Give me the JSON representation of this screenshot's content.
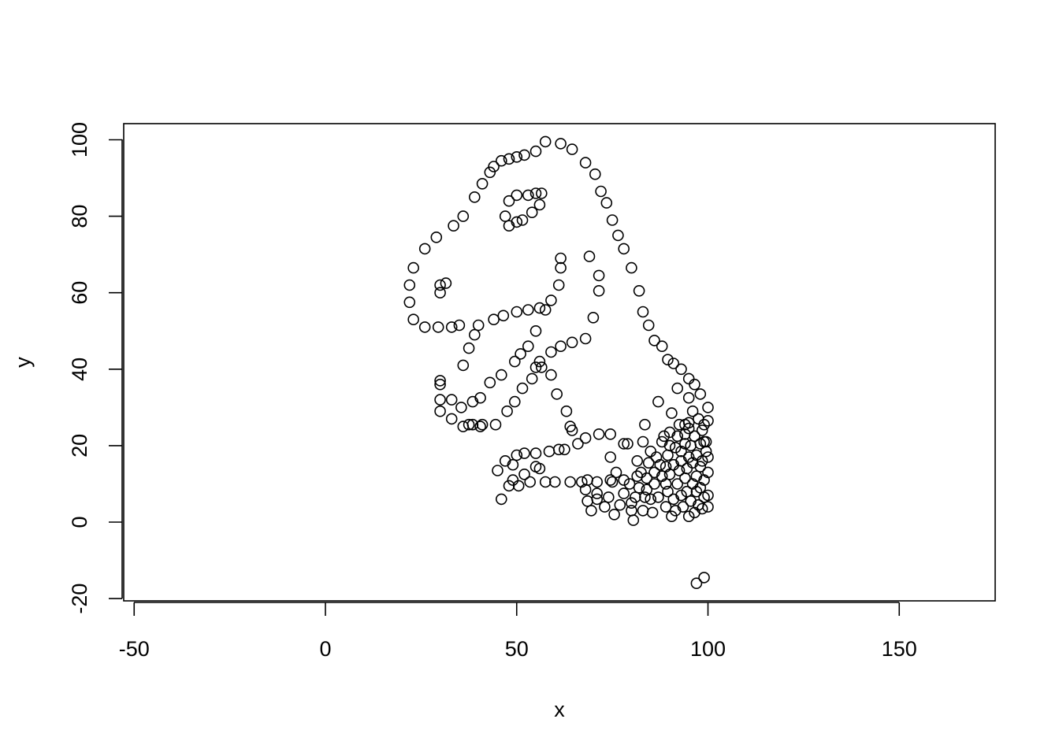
{
  "chart_data": {
    "type": "scatter",
    "title": "",
    "xlabel": "x",
    "ylabel": "y",
    "xlim": [
      -50,
      175
    ],
    "ylim": [
      -20,
      100
    ],
    "xticks": [
      "-50",
      "0",
      "50",
      "100",
      "150"
    ],
    "yticks": [
      "-20",
      "0",
      "20",
      "40",
      "60",
      "80",
      "100"
    ],
    "grid": false,
    "legend": "none",
    "marker": "open-circle",
    "colors": {
      "points": "#000000",
      "frame": "#000000",
      "background": "#ffffff"
    },
    "points": [
      [
        57.5,
        99.5
      ],
      [
        61.5,
        99
      ],
      [
        64.5,
        97.5
      ],
      [
        68,
        94
      ],
      [
        70.5,
        91
      ],
      [
        72,
        86.5
      ],
      [
        73.5,
        83.5
      ],
      [
        75,
        79
      ],
      [
        76.5,
        75
      ],
      [
        78,
        71.5
      ],
      [
        80,
        66.5
      ],
      [
        82,
        60.5
      ],
      [
        83,
        55
      ],
      [
        84.5,
        51.5
      ],
      [
        86,
        47.5
      ],
      [
        88,
        46
      ],
      [
        89.5,
        42.5
      ],
      [
        91,
        41.5
      ],
      [
        93,
        40
      ],
      [
        95,
        37.5
      ],
      [
        96.5,
        36
      ],
      [
        98,
        33.5
      ],
      [
        100,
        30
      ],
      [
        100,
        26.5
      ],
      [
        98.5,
        24
      ],
      [
        99,
        21
      ],
      [
        95,
        24.5
      ],
      [
        94,
        25.5
      ],
      [
        55,
        97
      ],
      [
        52,
        96
      ],
      [
        50,
        95.5
      ],
      [
        48,
        95
      ],
      [
        46,
        94.5
      ],
      [
        44,
        93
      ],
      [
        43,
        91.5
      ],
      [
        41,
        88.5
      ],
      [
        39,
        85
      ],
      [
        36,
        80
      ],
      [
        33.5,
        77.5
      ],
      [
        29,
        74.5
      ],
      [
        26,
        71.5
      ],
      [
        23,
        66.5
      ],
      [
        22,
        62
      ],
      [
        22,
        57.5
      ],
      [
        23,
        53
      ],
      [
        26,
        51
      ],
      [
        29.5,
        51
      ],
      [
        33,
        51
      ],
      [
        35,
        51.5
      ],
      [
        40,
        51.5
      ],
      [
        44,
        53
      ],
      [
        46.5,
        54
      ],
      [
        50,
        55
      ],
      [
        53,
        55.5
      ],
      [
        56,
        56
      ],
      [
        57.5,
        55.5
      ],
      [
        59,
        58
      ],
      [
        61,
        62
      ],
      [
        61.5,
        66.5
      ],
      [
        61.5,
        69
      ],
      [
        47,
        80
      ],
      [
        48,
        84
      ],
      [
        50,
        85.5
      ],
      [
        53,
        85.5
      ],
      [
        55,
        86
      ],
      [
        56.5,
        86
      ],
      [
        56,
        83
      ],
      [
        54,
        81
      ],
      [
        51.5,
        79
      ],
      [
        50,
        78.5
      ],
      [
        48,
        77.5
      ],
      [
        30,
        60
      ],
      [
        30,
        62
      ],
      [
        31.5,
        62.5
      ],
      [
        69,
        69.5
      ],
      [
        71.5,
        64.5
      ],
      [
        71.5,
        60.5
      ],
      [
        70,
        53.5
      ],
      [
        68,
        48
      ],
      [
        64.5,
        47
      ],
      [
        61.5,
        46
      ],
      [
        59,
        44.5
      ],
      [
        56,
        42
      ],
      [
        55,
        40.5
      ],
      [
        56.5,
        40.5
      ],
      [
        59,
        38.5
      ],
      [
        60.5,
        33.5
      ],
      [
        63,
        29
      ],
      [
        64,
        25
      ],
      [
        64.5,
        24
      ],
      [
        66,
        20.5
      ],
      [
        68,
        22
      ],
      [
        71.5,
        23
      ],
      [
        74.5,
        23
      ],
      [
        78,
        20.5
      ],
      [
        74.5,
        17
      ],
      [
        55,
        50
      ],
      [
        53,
        46
      ],
      [
        51,
        44
      ],
      [
        49.5,
        42
      ],
      [
        46,
        38.5
      ],
      [
        43,
        36.5
      ],
      [
        40.5,
        32.5
      ],
      [
        38.5,
        31.5
      ],
      [
        35.5,
        30
      ],
      [
        33,
        27
      ],
      [
        30,
        29
      ],
      [
        30,
        32
      ],
      [
        30,
        36
      ],
      [
        30,
        37
      ],
      [
        33,
        32
      ],
      [
        36,
        41
      ],
      [
        37.5,
        45.5
      ],
      [
        39,
        49
      ],
      [
        54,
        37.5
      ],
      [
        51.5,
        35
      ],
      [
        49.5,
        31.5
      ],
      [
        47.5,
        29
      ],
      [
        44.5,
        25.5
      ],
      [
        40.5,
        25
      ],
      [
        38.5,
        25.5
      ],
      [
        37.5,
        25.5
      ],
      [
        36,
        25
      ],
      [
        41,
        25.5
      ],
      [
        45,
        13.5
      ],
      [
        47,
        16
      ],
      [
        48,
        9.5
      ],
      [
        49,
        15
      ],
      [
        50,
        17.5
      ],
      [
        52,
        18
      ],
      [
        55,
        18
      ],
      [
        58.5,
        18.5
      ],
      [
        61,
        19
      ],
      [
        62.5,
        19
      ],
      [
        46,
        6
      ],
      [
        49,
        11
      ],
      [
        50.5,
        9.5
      ],
      [
        52,
        12.5
      ],
      [
        53.5,
        10.5
      ],
      [
        55,
        14.5
      ],
      [
        56,
        14
      ],
      [
        57.5,
        10.5
      ],
      [
        60,
        10.5
      ],
      [
        64,
        10.5
      ],
      [
        67,
        10.5
      ],
      [
        68.5,
        11
      ],
      [
        68,
        8.5
      ],
      [
        68.5,
        5.5
      ],
      [
        69.5,
        3
      ],
      [
        71,
        6
      ],
      [
        71,
        7.5
      ],
      [
        71,
        10.5
      ],
      [
        73,
        4
      ],
      [
        74,
        6.5
      ],
      [
        74.5,
        11
      ],
      [
        75,
        10.5
      ],
      [
        75.5,
        2
      ],
      [
        76,
        13
      ],
      [
        77,
        4.5
      ],
      [
        78,
        7.5
      ],
      [
        78,
        11
      ],
      [
        79,
        20.5
      ],
      [
        79.5,
        10
      ],
      [
        80,
        5
      ],
      [
        80,
        3
      ],
      [
        80.5,
        0.5
      ],
      [
        81,
        6.5
      ],
      [
        81.5,
        12
      ],
      [
        81.5,
        16
      ],
      [
        82,
        9
      ],
      [
        82.5,
        13
      ],
      [
        83,
        21
      ],
      [
        83,
        3
      ],
      [
        83.5,
        6.5
      ],
      [
        83.5,
        25.5
      ],
      [
        84,
        8.5
      ],
      [
        84,
        11.5
      ],
      [
        84.5,
        15.5
      ],
      [
        85,
        6
      ],
      [
        85,
        18.5
      ],
      [
        85.5,
        2.5
      ],
      [
        86,
        10
      ],
      [
        86,
        13
      ],
      [
        86.5,
        17
      ],
      [
        87,
        31.5
      ],
      [
        87,
        6.5
      ],
      [
        87.5,
        15
      ],
      [
        88,
        21
      ],
      [
        88,
        12
      ],
      [
        88.5,
        22.5
      ],
      [
        89,
        4
      ],
      [
        89,
        10
      ],
      [
        89,
        14.5
      ],
      [
        89.5,
        17.5
      ],
      [
        89.5,
        8
      ],
      [
        90,
        20
      ],
      [
        90,
        23.5
      ],
      [
        90,
        12.5
      ],
      [
        90.5,
        28.5
      ],
      [
        90.5,
        1.5
      ],
      [
        91,
        15
      ],
      [
        91,
        6
      ],
      [
        91.5,
        19.5
      ],
      [
        91.5,
        3
      ],
      [
        92,
        35
      ],
      [
        92,
        10
      ],
      [
        92,
        22.5
      ],
      [
        92.5,
        13.5
      ],
      [
        92.5,
        25.5
      ],
      [
        93,
        18.5
      ],
      [
        93,
        7
      ],
      [
        93,
        16
      ],
      [
        93.5,
        4
      ],
      [
        94,
        23
      ],
      [
        94,
        11.5
      ],
      [
        94,
        20.5
      ],
      [
        94.5,
        8
      ],
      [
        94.5,
        14
      ],
      [
        95,
        26
      ],
      [
        95,
        32.5
      ],
      [
        95,
        17
      ],
      [
        95,
        1.5
      ],
      [
        95.5,
        20
      ],
      [
        95.5,
        5.5
      ],
      [
        96,
        10
      ],
      [
        96,
        29
      ],
      [
        96,
        15.5
      ],
      [
        96.5,
        2.5
      ],
      [
        96.5,
        22.5
      ],
      [
        97,
        8
      ],
      [
        97,
        12
      ],
      [
        97,
        17.5
      ],
      [
        97.5,
        4.5
      ],
      [
        97.5,
        27
      ],
      [
        98,
        14.5
      ],
      [
        98,
        20.5
      ],
      [
        98,
        9
      ],
      [
        98.5,
        3.5
      ],
      [
        98.5,
        16
      ],
      [
        99,
        25.5
      ],
      [
        99,
        11
      ],
      [
        99,
        6.5
      ],
      [
        99.5,
        18.5
      ],
      [
        99.5,
        21
      ],
      [
        100,
        13
      ],
      [
        100,
        7
      ],
      [
        100,
        17
      ],
      [
        100,
        4
      ],
      [
        97,
        -16
      ],
      [
        99,
        -14.5
      ]
    ]
  }
}
